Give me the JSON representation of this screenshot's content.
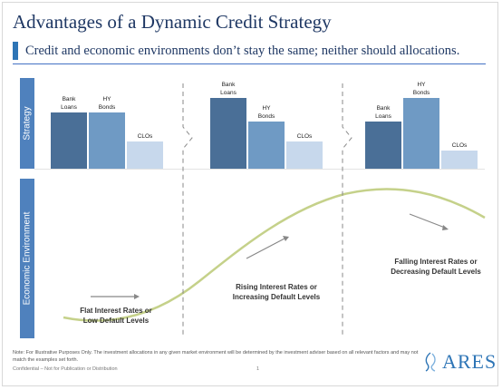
{
  "header": {
    "title": "Advantages of a Dynamic Credit Strategy",
    "subtitle": "Credit and economic environments don’t stay the same; neither should allocations."
  },
  "axis_labels": {
    "strategy": "Strategy",
    "economic_environment": "Economic Environment"
  },
  "chart_data": {
    "type": "bar",
    "panels": [
      {
        "categories": [
          "Bank Loans",
          "HY Bonds",
          "CLOs"
        ],
        "values": [
          62,
          62,
          30
        ],
        "bar_colors": [
          "#4a6f97",
          "#6f9ac4",
          "#c7d8ec"
        ],
        "environment_label": [
          "Flat Interest Rates or",
          "Low Default Levels"
        ]
      },
      {
        "categories": [
          "Bank Loans",
          "HY Bonds",
          "CLOs"
        ],
        "values": [
          78,
          52,
          30
        ],
        "bar_colors": [
          "#4a6f97",
          "#6f9ac4",
          "#c7d8ec"
        ],
        "environment_label": [
          "Rising Interest Rates or",
          "Increasing Default Levels"
        ]
      },
      {
        "categories": [
          "Bank Loans",
          "HY Bonds",
          "CLOs"
        ],
        "values": [
          52,
          78,
          20
        ],
        "bar_colors": [
          "#4a6f97",
          "#6f9ac4",
          "#c7d8ec"
        ],
        "environment_label": [
          "Falling Interest Rates or",
          "Decreasing Default Levels"
        ]
      }
    ]
  },
  "footer": {
    "note": "Note: For Illustrative Purposes Only. The investment allocations in any given market environment will be determined by the investment adviser based on all relevant factors and may not match the examples set forth.",
    "confidential": "Confidential – Not for Publication or Distribution",
    "page_number": "1",
    "logo_text": "ARES"
  },
  "colors": {
    "accent": "#2e75b6",
    "side_label_bg": "#4f81bd",
    "curve": "#c5d18a"
  }
}
